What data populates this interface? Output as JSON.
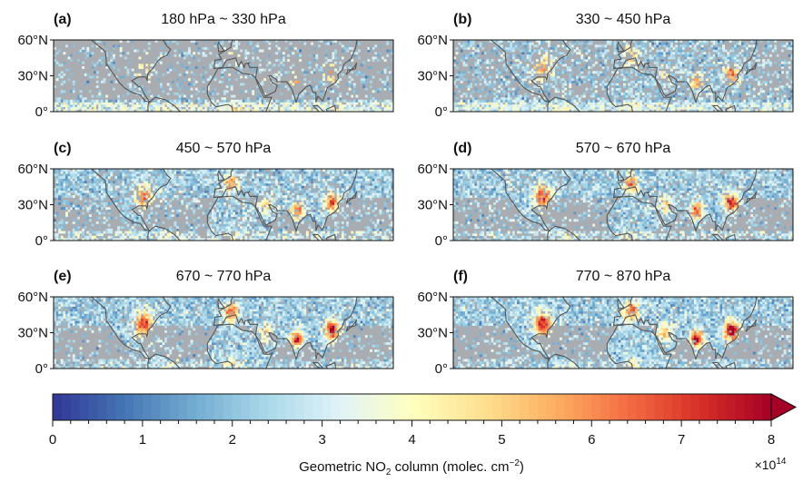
{
  "figure": {
    "colorbar_label_prefix": "Geometric NO",
    "colorbar_label_sub": "2",
    "colorbar_label_suffix": " column (molec. cm",
    "colorbar_label_sup": "−2",
    "colorbar_label_end": ")",
    "multiplier_prefix": "×10",
    "multiplier_exp": "14"
  },
  "chart_data": {
    "type": "heatmap",
    "shared_axes": {
      "y_tick_labels": [
        "60°N",
        "30°N",
        "0°"
      ],
      "y_ticks": [
        60,
        30,
        0
      ],
      "lat_range": [
        0,
        60
      ],
      "lon_range": [
        -180,
        180
      ]
    },
    "colorbar": {
      "colormap": "RdYlBu_r",
      "min": 0,
      "max": 8,
      "ticks": [
        0,
        1,
        2,
        3,
        4,
        5,
        6,
        7,
        8
      ],
      "tick_labels": [
        "0",
        "1",
        "2",
        "3",
        "4",
        "5",
        "6",
        "7",
        "8"
      ],
      "extend": "max",
      "multiplier": "1e14"
    },
    "panels": [
      {
        "tag": "(a)",
        "title": "180 hPa ~ 330 hPa",
        "level": 0.18
      },
      {
        "tag": "(b)",
        "title": "330 ~ 450 hPa",
        "level": 0.32
      },
      {
        "tag": "(c)",
        "title": "450 ~ 570 hPa",
        "level": 0.45
      },
      {
        "tag": "(d)",
        "title": "570 ~ 670 hPa",
        "level": 0.6
      },
      {
        "tag": "(e)",
        "title": "670 ~ 770 hPa",
        "level": 0.75
      },
      {
        "tag": "(f)",
        "title": "770 ~ 870 hPa",
        "level": 0.85
      }
    ],
    "colors": {
      "background": "#ffffff",
      "land_mask": "#a9adb1",
      "coastline": "#555555",
      "colormap_stops": [
        "#313695",
        "#4575b4",
        "#74add1",
        "#abd9e9",
        "#e0f3f8",
        "#ffffbf",
        "#fee090",
        "#fdae61",
        "#f46d43",
        "#d73027",
        "#a50026"
      ]
    }
  }
}
